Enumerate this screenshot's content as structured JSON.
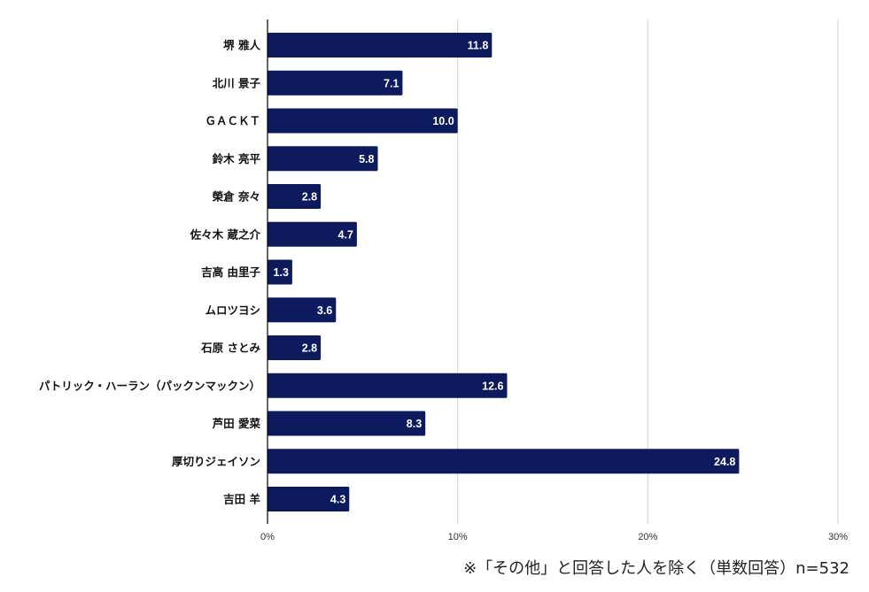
{
  "chart_data": {
    "type": "bar",
    "orientation": "horizontal",
    "categories": [
      "堺 雅人",
      "北川 景子",
      "ＧＡＣＫＴ",
      "鈴木 亮平",
      "榮倉 奈々",
      "佐々木 蔵之介",
      "吉高 由里子",
      "ムロツヨシ",
      "石原 さとみ",
      "パトリック・ハーラン（パックンマックン）",
      "芦田 愛菜",
      "厚切りジェイソン",
      "吉田 羊"
    ],
    "values": [
      11.8,
      7.1,
      10.0,
      5.8,
      2.8,
      4.7,
      1.3,
      3.6,
      2.8,
      12.6,
      8.3,
      24.8,
      4.3
    ],
    "value_labels": [
      "11.8",
      "7.1",
      "10.0",
      "5.8",
      "2.8",
      "4.7",
      "1.3",
      "3.6",
      "2.8",
      "12.6",
      "8.3",
      "24.8",
      "4.3"
    ],
    "xlim": [
      0,
      30
    ],
    "xticks": [
      0,
      10,
      20,
      30
    ],
    "xtick_labels": [
      "0%",
      "10%",
      "20%",
      "30%"
    ],
    "grid": true,
    "bar_color": "#0d1b5e",
    "grid_color": "#d0d0d0"
  },
  "footnote": "※「その他」と回答した人を除く（単数回答）n=532"
}
